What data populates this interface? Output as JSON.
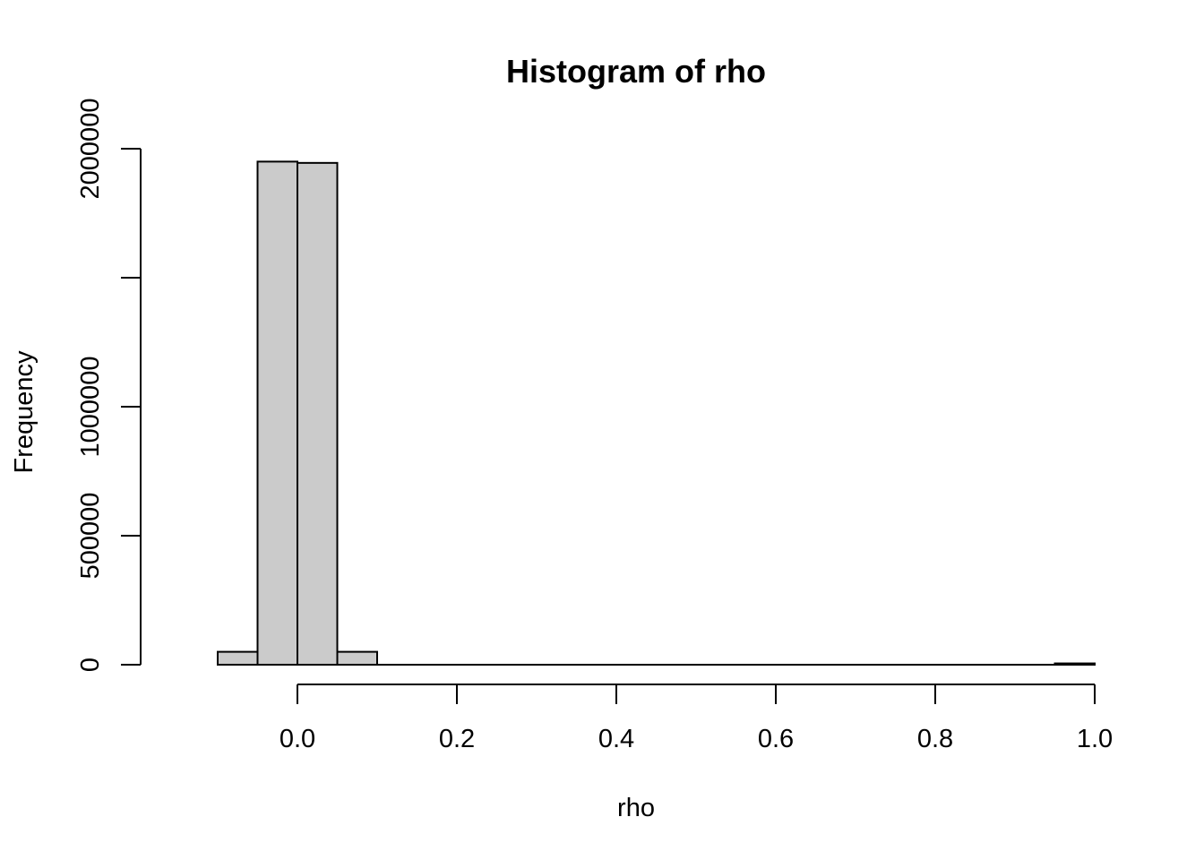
{
  "chart_data": {
    "type": "bar",
    "title": "Histogram of rho",
    "xlabel": "rho",
    "ylabel": "Frequency",
    "bin_width": 0.05,
    "bin_starts": [
      -0.1,
      -0.05,
      0.0,
      0.05,
      0.1,
      0.15,
      0.2,
      0.25,
      0.3,
      0.35,
      0.4,
      0.45,
      0.5,
      0.55,
      0.6,
      0.65,
      0.7,
      0.75,
      0.8,
      0.85,
      0.9,
      0.95
    ],
    "values": [
      50000,
      1950000,
      1945000,
      50000,
      0,
      0,
      0,
      0,
      0,
      0,
      0,
      0,
      0,
      0,
      0,
      0,
      0,
      0,
      0,
      0,
      0,
      5000
    ],
    "xlim": [
      -0.15,
      1.0
    ],
    "ylim": [
      0,
      2000000
    ],
    "x_ticks": [
      0.0,
      0.2,
      0.4,
      0.6,
      0.8,
      1.0
    ],
    "x_tick_labels": [
      "0.0",
      "0.2",
      "0.4",
      "0.6",
      "0.8",
      "1.0"
    ],
    "y_ticks": [
      0,
      500000,
      1000000,
      1500000,
      2000000
    ],
    "y_tick_labels": [
      "0",
      "500000",
      "1000000",
      "",
      "2000000"
    ],
    "grid": false,
    "legend": "none",
    "colors": {
      "bar_fill": "#cbcbcb",
      "bar_stroke": "#000000"
    }
  }
}
